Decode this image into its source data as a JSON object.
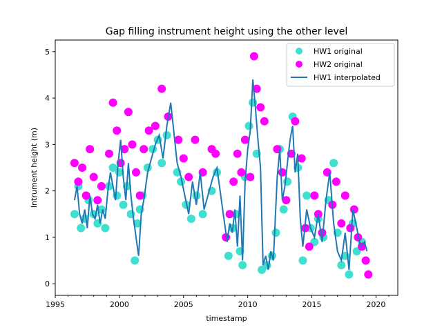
{
  "chart_data": {
    "type": "scatter",
    "title": "Gap filling instrument height using the other level",
    "xlabel": "timestamp",
    "ylabel": "Intrument height (m)",
    "xlim": [
      1995.0,
      2021.7
    ],
    "ylim": [
      -0.25,
      5.25
    ],
    "x_major_ticks": [
      1995,
      2000,
      2005,
      2010,
      2015,
      2020
    ],
    "x_minor_ticks": [
      1996,
      1997,
      1998,
      1999,
      2001,
      2002,
      2003,
      2004,
      2006,
      2007,
      2008,
      2009,
      2011,
      2012,
      2013,
      2014,
      2016,
      2017,
      2018,
      2019,
      2021
    ],
    "x_tick_labels": [
      "1995",
      "2000",
      "2005",
      "2010",
      "2015",
      "2020"
    ],
    "y_ticks": [
      0,
      1,
      2,
      3,
      4,
      5
    ],
    "y_tick_labels": [
      "0",
      "1",
      "2",
      "3",
      "4",
      "5"
    ],
    "grid": false,
    "legend_position": "upper-right",
    "colors": {
      "hw1": "#40e0d0",
      "hw2": "#ff00ff",
      "interp": "#1f77b4"
    },
    "series": [
      {
        "name": "HW1 original",
        "kind": "points",
        "x": [
          1996.5,
          1996.8,
          1997.0,
          1997.3,
          1997.6,
          1998.0,
          1998.3,
          1998.6,
          1998.9,
          1999.2,
          1999.5,
          1999.8,
          2000.0,
          2000.3,
          2000.6,
          2000.9,
          2001.2,
          2001.4,
          2001.6,
          2001.8,
          2002.2,
          2002.6,
          2003.0,
          2003.3,
          2003.7,
          2004.5,
          2004.8,
          2005.2,
          2005.6,
          2006.0,
          2006.5,
          2007.2,
          2007.6,
          2008.5,
          2008.8,
          2009.1,
          2009.4,
          2009.6,
          2009.8,
          2010.1,
          2010.4,
          2010.7,
          2011.1,
          2011.5,
          2011.9,
          2012.2,
          2012.5,
          2012.8,
          2013.1,
          2013.5,
          2013.9,
          2014.3,
          2014.6,
          2014.9,
          2015.2,
          2015.5,
          2015.9,
          2016.3,
          2016.7,
          2017.0,
          2017.3,
          2017.6,
          2017.9,
          2018.2,
          2018.5,
          2018.9
        ],
        "y": [
          1.5,
          2.1,
          1.2,
          1.4,
          1.8,
          1.5,
          1.3,
          1.6,
          1.2,
          2.1,
          2.5,
          1.9,
          2.4,
          1.7,
          2.1,
          1.5,
          0.5,
          1.3,
          1.6,
          1.9,
          2.5,
          2.9,
          3.1,
          2.6,
          3.2,
          2.4,
          2.2,
          1.7,
          1.4,
          1.9,
          1.5,
          2.0,
          2.4,
          0.6,
          1.2,
          1.5,
          0.7,
          0.4,
          2.3,
          3.4,
          3.9,
          2.8,
          0.3,
          0.4,
          0.6,
          1.1,
          2.9,
          1.6,
          2.2,
          3.6,
          2.5,
          0.5,
          1.9,
          1.2,
          0.9,
          1.4,
          1.0,
          1.8,
          2.6,
          1.1,
          0.4,
          0.6,
          0.2,
          1.3,
          0.7,
          0.9
        ]
      },
      {
        "name": "HW2 original",
        "kind": "points",
        "x": [
          1996.5,
          1996.8,
          1997.1,
          1997.4,
          1997.7,
          1998.0,
          1998.3,
          1998.6,
          1999.2,
          1999.5,
          1999.8,
          2000.1,
          2000.4,
          2000.7,
          2001.0,
          2001.3,
          2001.6,
          2001.9,
          2002.3,
          2002.8,
          2003.3,
          2003.8,
          2004.6,
          2005.0,
          2005.4,
          2005.9,
          2006.5,
          2007.2,
          2007.5,
          2008.3,
          2008.6,
          2008.9,
          2009.2,
          2009.5,
          2009.8,
          2010.2,
          2010.5,
          2010.7,
          2011.0,
          2011.3,
          2012.3,
          2012.7,
          2013.0,
          2013.4,
          2013.7,
          2014.2,
          2014.5,
          2014.8,
          2015.2,
          2015.5,
          2015.8,
          2016.2,
          2016.6,
          2016.9,
          2017.3,
          2017.6,
          2018.0,
          2018.3,
          2018.6,
          2018.9,
          2019.2,
          2019.4
        ],
        "y": [
          2.6,
          2.2,
          2.5,
          1.9,
          2.9,
          2.3,
          1.8,
          2.1,
          2.8,
          3.9,
          3.3,
          2.6,
          2.9,
          3.7,
          3.0,
          2.4,
          1.9,
          2.9,
          3.3,
          3.4,
          4.2,
          3.6,
          3.1,
          2.7,
          2.3,
          3.1,
          2.4,
          2.9,
          2.8,
          1.0,
          1.5,
          2.2,
          2.8,
          2.4,
          3.1,
          2.3,
          4.9,
          4.2,
          3.8,
          3.5,
          2.9,
          2.4,
          1.8,
          2.8,
          3.5,
          2.7,
          1.2,
          0.8,
          1.9,
          1.5,
          1.1,
          2.4,
          1.7,
          2.2,
          1.3,
          1.9,
          1.2,
          1.6,
          1.0,
          0.8,
          0.5,
          0.2
        ]
      },
      {
        "name": "HW1 interpolated",
        "kind": "line",
        "x": [
          1996.5,
          1996.7,
          1996.9,
          1997.1,
          1997.3,
          1997.5,
          1997.7,
          1997.9,
          1998.1,
          1998.3,
          1998.5,
          1998.7,
          1998.9,
          1999.1,
          1999.3,
          1999.5,
          1999.7,
          1999.9,
          2000.1,
          2000.3,
          2000.5,
          2000.7,
          2000.9,
          2001.1,
          2001.3,
          2001.5,
          2001.7,
          2001.9,
          2002.2,
          2002.5,
          2002.8,
          2003.1,
          2003.4,
          2003.7,
          2004.0,
          2004.5,
          2004.8,
          2005.1,
          2005.4,
          2005.7,
          2006.0,
          2006.3,
          2006.6,
          2007.3,
          2007.6,
          2008.4,
          2008.6,
          2008.8,
          2009.0,
          2009.2,
          2009.4,
          2009.6,
          2009.8,
          2010.0,
          2010.2,
          2010.4,
          2010.6,
          2010.8,
          2011.0,
          2011.2,
          2011.4,
          2011.6,
          2011.8,
          2012.0,
          2012.3,
          2012.5,
          2012.7,
          2012.9,
          2013.1,
          2013.3,
          2013.5,
          2013.7,
          2013.9,
          2014.1,
          2014.3,
          2014.6,
          2014.9,
          2015.2,
          2015.5,
          2015.8,
          2016.1,
          2016.4,
          2016.7,
          2017.0,
          2017.3,
          2017.6,
          2017.9,
          2018.2,
          2018.5,
          2018.8,
          2019.1,
          2019.3
        ],
        "y": [
          1.8,
          2.1,
          1.5,
          1.3,
          1.6,
          1.2,
          1.9,
          1.5,
          1.4,
          1.7,
          1.3,
          1.6,
          1.4,
          2.0,
          2.4,
          2.1,
          1.8,
          2.6,
          3.1,
          2.3,
          1.8,
          2.6,
          1.9,
          1.4,
          1.0,
          0.6,
          1.5,
          1.8,
          2.4,
          2.7,
          3.0,
          3.2,
          2.7,
          3.4,
          3.9,
          2.6,
          2.3,
          1.9,
          1.5,
          2.2,
          1.7,
          2.4,
          1.6,
          2.3,
          2.5,
          0.9,
          1.3,
          1.1,
          1.6,
          0.8,
          1.9,
          0.5,
          2.2,
          2.9,
          3.3,
          4.4,
          3.8,
          3.1,
          2.5,
          0.4,
          0.6,
          0.3,
          0.7,
          0.5,
          2.3,
          2.9,
          1.8,
          2.1,
          2.6,
          3.1,
          3.4,
          2.4,
          2.8,
          1.4,
          0.8,
          1.6,
          1.2,
          1.0,
          1.5,
          0.9,
          1.8,
          2.4,
          1.3,
          0.7,
          0.5,
          1.1,
          0.3,
          1.6,
          1.2,
          0.8,
          0.9,
          0.7
        ]
      }
    ]
  }
}
